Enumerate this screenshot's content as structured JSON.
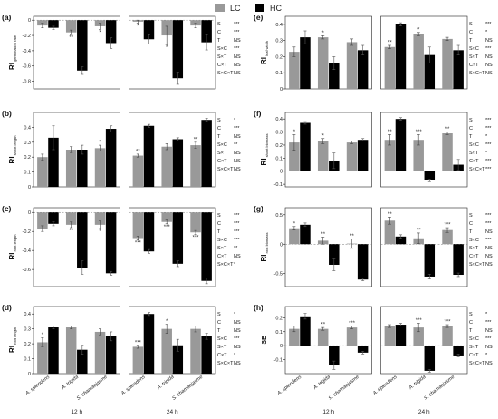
{
  "legend": {
    "position": "top-center",
    "items": [
      {
        "label": "LC",
        "color": "#999999"
      },
      {
        "label": "HC",
        "color": "#000000"
      }
    ]
  },
  "colors": {
    "LC": "#999999",
    "HC": "#000000",
    "axis": "#222222"
  },
  "species": [
    "A. splendens",
    "A. trigida",
    "S. chamaejasme"
  ],
  "times": [
    "12 h",
    "24 h"
  ],
  "chart_data": [
    {
      "type": "bar",
      "panel": "(a)",
      "ylabel": "RI germination rate",
      "ylim": [
        -0.9,
        0.05
      ],
      "yticks": [
        0,
        -0.2,
        -0.4,
        -0.6,
        -0.8
      ],
      "categories": [
        "12 h|A. splendens",
        "12 h|A. trigida",
        "12 h|S. chamaejasme",
        "24 h|A. splendens",
        "24 h|A. trigida",
        "24 h|S. chamaejasme"
      ],
      "series": [
        {
          "name": "LC",
          "values": [
            -0.07,
            -0.16,
            -0.08,
            -0.02,
            -0.2,
            -0.07
          ],
          "errors": [
            0.03,
            0.03,
            0.04,
            0.02,
            0.12,
            0.03
          ],
          "labels": [
            "",
            "**",
            "*",
            "*",
            "*",
            ""
          ]
        },
        {
          "name": "HC",
          "values": [
            -0.1,
            -0.66,
            -0.3,
            -0.25,
            -0.76,
            -0.29
          ],
          "errors": [
            0.02,
            0.05,
            0.07,
            0.06,
            0.08,
            0.1
          ],
          "labels": [
            "",
            "",
            "",
            "",
            "",
            ""
          ]
        }
      ],
      "stats": [
        [
          "S",
          "***"
        ],
        [
          "C",
          "***"
        ],
        [
          "T",
          "NS"
        ],
        [
          "S×C",
          "***"
        ],
        [
          "S×T",
          "NS"
        ],
        [
          "C×T",
          "NS"
        ],
        [
          "S×C×T",
          "NS"
        ]
      ]
    },
    {
      "type": "bar",
      "panel": "(b)",
      "ylabel": "RI shoot length",
      "ylim": [
        0,
        0.5
      ],
      "yticks": [
        0,
        0.1,
        0.2,
        0.3,
        0.4
      ],
      "categories": [
        "12 h|A. splendens",
        "12 h|A. trigida",
        "12 h|S. chamaejasme",
        "24 h|A. splendens",
        "24 h|A. trigida",
        "24 h|S. chamaejasme"
      ],
      "series": [
        {
          "name": "LC",
          "values": [
            0.2,
            0.25,
            0.26,
            0.21,
            0.27,
            0.28
          ],
          "errors": [
            0.02,
            0.02,
            0.02,
            0.01,
            0.02,
            0.02
          ],
          "labels": [
            "",
            "",
            "*",
            "**",
            "",
            "**"
          ]
        },
        {
          "name": "HC",
          "values": [
            0.33,
            0.25,
            0.39,
            0.41,
            0.32,
            0.45
          ],
          "errors": [
            0.08,
            0.03,
            0.02,
            0.01,
            0.01,
            0.01
          ],
          "labels": [
            "",
            "",
            "",
            "",
            "",
            ""
          ]
        }
      ],
      "stats": [
        [
          "S",
          "*"
        ],
        [
          "C",
          "***"
        ],
        [
          "T",
          "NS"
        ],
        [
          "S×C",
          "**"
        ],
        [
          "S×T",
          "NS"
        ],
        [
          "C×T",
          "NS"
        ],
        [
          "S×C×T",
          "NS"
        ]
      ]
    },
    {
      "type": "bar",
      "panel": "(c)",
      "ylabel": "RI root length",
      "ylim": [
        -0.78,
        0.05
      ],
      "yticks": [
        0,
        -0.2,
        -0.4,
        -0.6
      ],
      "categories": [
        "12 h|A. splendens",
        "12 h|A. trigida",
        "12 h|S. chamaejasme",
        "24 h|A. splendens",
        "24 h|A. trigida",
        "24 h|S. chamaejasme"
      ],
      "series": [
        {
          "name": "LC",
          "values": [
            -0.17,
            -0.13,
            -0.13,
            -0.27,
            -0.1,
            -0.21
          ],
          "errors": [
            0.03,
            0.03,
            0.04,
            0.02,
            0.02,
            0.02
          ],
          "labels": [
            "",
            "**",
            "*",
            "***",
            "***",
            "***"
          ]
        },
        {
          "name": "HC",
          "values": [
            -0.12,
            -0.58,
            -0.64,
            -0.41,
            -0.54,
            -0.72
          ],
          "errors": [
            0.02,
            0.07,
            0.02,
            0.02,
            0.03,
            0.03
          ],
          "labels": [
            "",
            "",
            "",
            "",
            "",
            ""
          ]
        }
      ],
      "stats": [
        [
          "S",
          "***"
        ],
        [
          "C",
          "***"
        ],
        [
          "T",
          "***"
        ],
        [
          "S×C",
          "***"
        ],
        [
          "S×T",
          "**"
        ],
        [
          "C×T",
          "NS"
        ],
        [
          "S×C×T",
          "*"
        ]
      ]
    },
    {
      "type": "bar",
      "panel": "(d)",
      "ylabel": "RI root length",
      "ylim": [
        0,
        0.45
      ],
      "yticks": [
        0,
        0.1,
        0.2,
        0.3,
        0.4
      ],
      "categories": [
        "12 h|A. splendens",
        "12 h|A. trigida",
        "12 h|S. chamaejasme",
        "24 h|A. splendens",
        "24 h|A. trigida",
        "24 h|S. chamaejasme"
      ],
      "series": [
        {
          "name": "LC",
          "values": [
            0.21,
            0.31,
            0.28,
            0.18,
            0.3,
            0.3
          ],
          "errors": [
            0.03,
            0.01,
            0.02,
            0.01,
            0.03,
            0.02
          ],
          "labels": [
            "*",
            "",
            "",
            "***",
            "*",
            ""
          ]
        },
        {
          "name": "HC",
          "values": [
            0.31,
            0.16,
            0.25,
            0.4,
            0.19,
            0.25
          ],
          "errors": [
            0.01,
            0.03,
            0.03,
            0.01,
            0.04,
            0.02
          ],
          "labels": [
            "",
            "",
            "",
            "",
            "",
            ""
          ]
        }
      ],
      "stats": [
        [
          "S",
          "*"
        ],
        [
          "C",
          "NS"
        ],
        [
          "T",
          "NS"
        ],
        [
          "S×C",
          "***"
        ],
        [
          "S×T",
          "NS"
        ],
        [
          "C×T",
          "*"
        ],
        [
          "S×C×T",
          "NS"
        ]
      ]
    },
    {
      "type": "bar",
      "panel": "(e)",
      "ylabel": "RI leaf width",
      "ylim": [
        0,
        0.45
      ],
      "yticks": [
        0,
        0.1,
        0.2,
        0.3,
        0.4
      ],
      "categories": [
        "12 h|A. splendens",
        "12 h|A. trigida",
        "12 h|S. chamaejasme",
        "24 h|A. splendens",
        "24 h|A. trigida",
        "24 h|S. chamaejasme"
      ],
      "series": [
        {
          "name": "LC",
          "values": [
            0.23,
            0.32,
            0.29,
            0.26,
            0.34,
            0.31
          ],
          "errors": [
            0.03,
            0.01,
            0.02,
            0.01,
            0.01,
            0.01
          ],
          "labels": [
            "",
            "*",
            "",
            "**",
            "*",
            ""
          ]
        },
        {
          "name": "HC",
          "values": [
            0.32,
            0.16,
            0.24,
            0.4,
            0.21,
            0.24
          ],
          "errors": [
            0.04,
            0.04,
            0.03,
            0.01,
            0.05,
            0.03
          ],
          "labels": [
            "",
            "",
            "",
            "",
            "",
            ""
          ]
        }
      ],
      "stats": [
        [
          "S",
          "***"
        ],
        [
          "C",
          "*"
        ],
        [
          "T",
          "NS"
        ],
        [
          "S×C",
          "***"
        ],
        [
          "S×T",
          "NS"
        ],
        [
          "C×T",
          "NS"
        ],
        [
          "S×C×T",
          "NS"
        ]
      ]
    },
    {
      "type": "bar",
      "panel": "(f)",
      "ylabel": "RI shoot biomass",
      "ylim": [
        -0.12,
        0.45
      ],
      "yticks": [
        -0.1,
        0,
        0.1,
        0.2,
        0.3,
        0.4
      ],
      "categories": [
        "12 h|A. splendens",
        "12 h|A. trigida",
        "12 h|S. chamaejasme",
        "24 h|A. splendens",
        "24 h|A. trigida",
        "24 h|S. chamaejasme"
      ],
      "series": [
        {
          "name": "LC",
          "values": [
            0.22,
            0.23,
            0.22,
            0.24,
            0.24,
            0.29
          ],
          "errors": [
            0.06,
            0.02,
            0.01,
            0.04,
            0.04,
            0.01
          ],
          "labels": [
            "*",
            "*",
            "",
            "**",
            "***",
            "**"
          ]
        },
        {
          "name": "HC",
          "values": [
            0.37,
            0.08,
            0.24,
            0.4,
            -0.07,
            0.05
          ],
          "errors": [
            0.01,
            0.06,
            0.01,
            0.01,
            0.01,
            0.04
          ],
          "labels": [
            "",
            "",
            "",
            "",
            "",
            ""
          ]
        }
      ],
      "stats": [
        [
          "S",
          "***"
        ],
        [
          "C",
          "***"
        ],
        [
          "T",
          "*"
        ],
        [
          "S×C",
          "***"
        ],
        [
          "S×T",
          "*"
        ],
        [
          "C×T",
          "***"
        ],
        [
          "S×C×T",
          "***"
        ]
      ]
    },
    {
      "type": "bar",
      "panel": "(g)",
      "ylabel": "RI root biomass",
      "ylim": [
        -0.72,
        0.62
      ],
      "yticks": [
        -0.5,
        0,
        0.5
      ],
      "categories": [
        "12 h|A. splendens",
        "12 h|A. trigida",
        "12 h|S. chamaejasme",
        "24 h|A. splendens",
        "24 h|A. trigida",
        "24 h|S. chamaejasme"
      ],
      "series": [
        {
          "name": "LC",
          "values": [
            0.27,
            0.06,
            0.01,
            0.4,
            0.1,
            0.24
          ],
          "errors": [
            0.03,
            0.06,
            0.08,
            0.06,
            0.09,
            0.04
          ],
          "labels": [
            "*",
            "**",
            "**",
            "**",
            "**",
            "***"
          ]
        },
        {
          "name": "HC",
          "values": [
            0.33,
            -0.35,
            -0.6,
            0.13,
            -0.55,
            -0.52
          ],
          "errors": [
            0.03,
            0.1,
            0.02,
            0.03,
            0.04,
            0.03
          ],
          "labels": [
            "",
            "",
            "",
            "",
            "",
            ""
          ]
        }
      ],
      "stats": [
        [
          "S",
          "***"
        ],
        [
          "C",
          "***"
        ],
        [
          "T",
          "NS"
        ],
        [
          "S×C",
          "***"
        ],
        [
          "S×T",
          "NS"
        ],
        [
          "C×T",
          "NS"
        ],
        [
          "S×C×T",
          "NS"
        ]
      ]
    },
    {
      "type": "bar",
      "panel": "(h)",
      "ylabel": "SE",
      "ylim": [
        -0.2,
        0.28
      ],
      "yticks": [
        -0.1,
        0,
        0.1,
        0.2
      ],
      "categories": [
        "12 h|A. splendens",
        "12 h|A. trigida",
        "12 h|S. chamaejasme",
        "24 h|A. splendens",
        "24 h|A. trigida",
        "24 h|S. chamaejasme"
      ],
      "series": [
        {
          "name": "LC",
          "values": [
            0.12,
            0.12,
            0.13,
            0.14,
            0.13,
            0.14
          ],
          "errors": [
            0.02,
            0.01,
            0.01,
            0.01,
            0.03,
            0.01
          ],
          "labels": [
            "",
            "**",
            "***",
            "",
            "***",
            "***"
          ]
        },
        {
          "name": "HC",
          "values": [
            0.21,
            -0.14,
            -0.05,
            0.15,
            -0.18,
            -0.07
          ],
          "errors": [
            0.02,
            0.03,
            0.01,
            0.01,
            0.01,
            0.01
          ],
          "labels": [
            "",
            "",
            "",
            "",
            "",
            ""
          ]
        }
      ],
      "stats": [
        [
          "S",
          "*"
        ],
        [
          "C",
          "***"
        ],
        [
          "T",
          "NS"
        ],
        [
          "S×C",
          "***"
        ],
        [
          "S×T",
          "NS"
        ],
        [
          "C×T",
          "*"
        ],
        [
          "S×C×T",
          "NS"
        ]
      ]
    }
  ]
}
